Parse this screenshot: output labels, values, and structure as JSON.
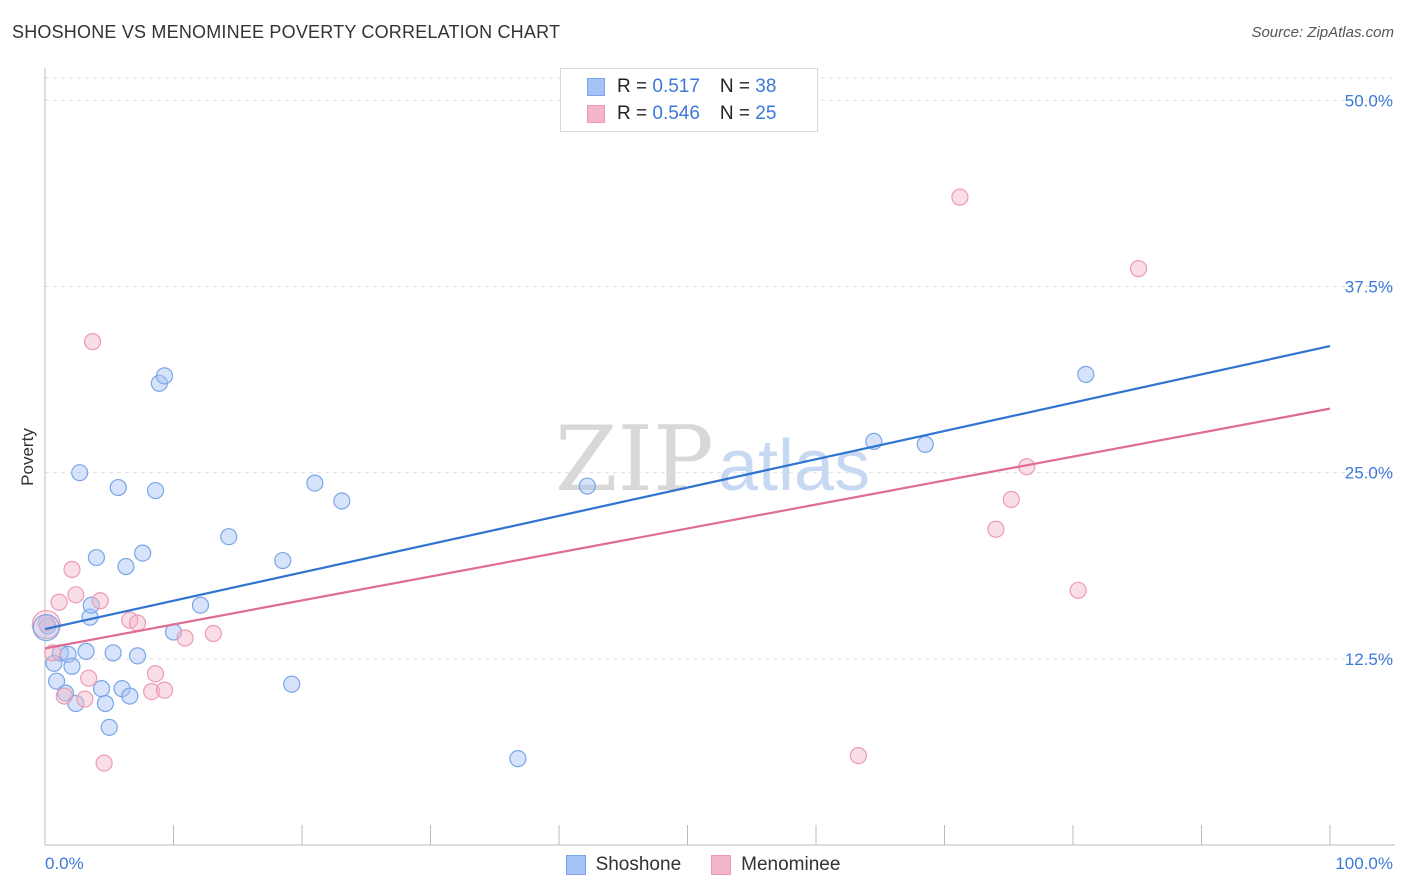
{
  "title": "SHOSHONE VS MENOMINEE POVERTY CORRELATION CHART",
  "source": "Source: ZipAtlas.com",
  "watermark": {
    "zip": "ZIP",
    "atlas": "atlas"
  },
  "legend": {
    "rows": [
      {
        "r_label": "R = ",
        "r_value": "0.517",
        "n_label": "N = ",
        "n_value": "38"
      },
      {
        "r_label": "R = ",
        "r_value": "0.546",
        "n_label": "N = ",
        "n_value": "25"
      }
    ]
  },
  "colors": {
    "shoshone_fill": "#a4c2f4",
    "shoshone_stroke": "#7aa6e8",
    "shoshone_line": "#2f74d0",
    "menominee_fill": "#f4b6c8",
    "menominee_stroke": "#ee9ab4",
    "menominee_line": "#e06c96",
    "tick_text": "#3c78d8",
    "grid": "#e0e0e0"
  },
  "chart_data": {
    "type": "scatter",
    "ylabel": "Poverty",
    "xlabel": "",
    "xlim": [
      0,
      100
    ],
    "ylim": [
      0,
      51.5
    ],
    "x_tick_labels": [
      "0.0%",
      "100.0%"
    ],
    "y_ticks": [
      12.5,
      25.0,
      37.5,
      50.0
    ],
    "y_tick_labels": [
      "12.5%",
      "25.0%",
      "37.5%",
      "50.0%"
    ],
    "grid": "horizontal dashed",
    "legend_position": "top-center",
    "series": [
      {
        "name": "Shoshone",
        "r": 0.517,
        "n": 38,
        "trend": {
          "x": [
            0,
            100
          ],
          "y": [
            14.5,
            33.5
          ]
        },
        "points": [
          [
            0.2,
            14.7
          ],
          [
            0.7,
            12.2
          ],
          [
            0.9,
            11.0
          ],
          [
            1.2,
            12.9
          ],
          [
            1.6,
            10.2
          ],
          [
            1.8,
            12.8
          ],
          [
            2.1,
            12.0
          ],
          [
            2.4,
            9.5
          ],
          [
            2.7,
            25.0
          ],
          [
            3.2,
            13.0
          ],
          [
            3.5,
            15.3
          ],
          [
            3.6,
            16.1
          ],
          [
            4.0,
            19.3
          ],
          [
            4.4,
            10.5
          ],
          [
            4.7,
            9.5
          ],
          [
            5.0,
            7.9
          ],
          [
            5.3,
            12.9
          ],
          [
            5.7,
            24.0
          ],
          [
            6.0,
            10.5
          ],
          [
            6.3,
            18.7
          ],
          [
            6.6,
            10.0
          ],
          [
            7.2,
            12.7
          ],
          [
            7.6,
            19.6
          ],
          [
            8.6,
            23.8
          ],
          [
            8.9,
            31.0
          ],
          [
            9.3,
            31.5
          ],
          [
            10.0,
            14.3
          ],
          [
            12.1,
            16.1
          ],
          [
            14.3,
            20.7
          ],
          [
            18.5,
            19.1
          ],
          [
            19.2,
            10.8
          ],
          [
            21.0,
            24.3
          ],
          [
            23.1,
            23.1
          ],
          [
            36.8,
            5.8
          ],
          [
            42.2,
            24.1
          ],
          [
            64.5,
            27.1
          ],
          [
            68.5,
            26.9
          ],
          [
            81.0,
            31.6
          ]
        ]
      },
      {
        "name": "Menominee",
        "r": 0.546,
        "n": 25,
        "trend": {
          "x": [
            0,
            100
          ],
          "y": [
            13.2,
            29.3
          ]
        },
        "points": [
          [
            0.1,
            14.9
          ],
          [
            0.6,
            12.9
          ],
          [
            1.1,
            16.3
          ],
          [
            1.5,
            10.0
          ],
          [
            2.1,
            18.5
          ],
          [
            2.4,
            16.8
          ],
          [
            3.1,
            9.8
          ],
          [
            3.4,
            11.2
          ],
          [
            3.7,
            33.8
          ],
          [
            4.3,
            16.4
          ],
          [
            4.6,
            5.5
          ],
          [
            6.6,
            15.1
          ],
          [
            7.2,
            14.9
          ],
          [
            8.3,
            10.3
          ],
          [
            8.6,
            11.5
          ],
          [
            9.3,
            10.4
          ],
          [
            10.9,
            13.9
          ],
          [
            13.1,
            14.2
          ],
          [
            63.3,
            6.0
          ],
          [
            71.2,
            43.5
          ],
          [
            74.0,
            21.2
          ],
          [
            75.2,
            23.2
          ],
          [
            76.4,
            25.4
          ],
          [
            80.4,
            17.1
          ],
          [
            85.1,
            38.7
          ]
        ]
      }
    ]
  }
}
